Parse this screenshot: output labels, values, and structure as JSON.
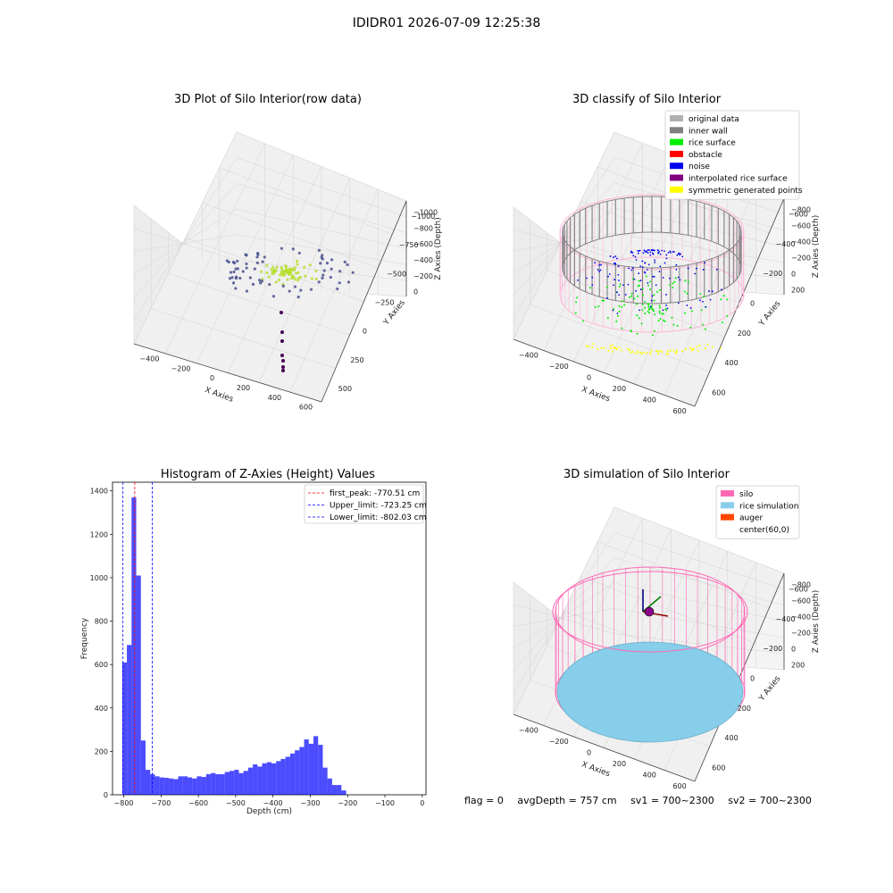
{
  "figure_title": "IDIDR01 2026-07-09 12:25:38",
  "panels": {
    "raw": {
      "title": "3D Plot of Silo Interior(row data)",
      "xlabel": "X Axies",
      "ylabel": "Y Axies",
      "zlabel": "Z Axies (Depth)",
      "xticks": [
        "−400",
        "−200",
        "0",
        "200",
        "400",
        "600"
      ],
      "yticks": [
        "500",
        "250",
        "0",
        "−250",
        "−500",
        "−750",
        "−1000"
      ],
      "zticks": [
        "0",
        "−200",
        "−400",
        "−600",
        "−800",
        "−1000"
      ]
    },
    "classify": {
      "title": "3D classify of Silo Interior",
      "xlabel": "X Axies",
      "ylabel": "Y Axies",
      "zlabel": "Z Axies (Depth)",
      "xticks": [
        "−400",
        "−200",
        "0",
        "200",
        "400",
        "600"
      ],
      "yticks": [
        "600",
        "400",
        "200",
        "0",
        "−200",
        "−400",
        "−600"
      ],
      "zticks": [
        "200",
        "0",
        "−200",
        "−400",
        "−600",
        "−800"
      ],
      "legend": [
        {
          "label": "original data",
          "color": "#b0b0b0"
        },
        {
          "label": "inner wall",
          "color": "#808080"
        },
        {
          "label": "rice surface",
          "color": "#00ee00"
        },
        {
          "label": "obstacle",
          "color": "#ff0000"
        },
        {
          "label": "noise",
          "color": "#0000ee"
        },
        {
          "label": "interpolated rice surface",
          "color": "#800080"
        },
        {
          "label": "symmetric generated points",
          "color": "#ffff00"
        }
      ]
    },
    "simulation": {
      "title": "3D simulation of Silo Interior",
      "xlabel": "X Axies",
      "ylabel": "Y Axies",
      "zlabel": "Z Axies (Depth)",
      "xticks": [
        "−400",
        "−200",
        "0",
        "200",
        "400",
        "600"
      ],
      "yticks": [
        "600",
        "400",
        "200",
        "0",
        "−200",
        "−400",
        "−600"
      ],
      "zticks": [
        "200",
        "0",
        "−200",
        "−400",
        "−600",
        "−800"
      ],
      "legend": [
        {
          "label": "silo",
          "color": "#ff69b4"
        },
        {
          "label": "rice simulation",
          "color": "#87ceeb"
        },
        {
          "label": "auger",
          "color": "#ff4500"
        },
        {
          "label": "center(60,0)",
          "color": ""
        }
      ]
    }
  },
  "chart_data": {
    "type": "bar",
    "title": "Histogram of Z-Axies (Height) Values",
    "xlabel": "Depth (cm)",
    "ylabel": "Frequency",
    "xlim": [
      -830,
      10
    ],
    "ylim": [
      0,
      1440
    ],
    "xticks": [
      -800,
      -700,
      -600,
      -500,
      -400,
      -300,
      -200,
      -100,
      0
    ],
    "yticks": [
      0,
      200,
      400,
      600,
      800,
      1000,
      1200,
      1400
    ],
    "bin_start": -804,
    "bin_width": 12.5,
    "values": [
      610,
      690,
      1370,
      1010,
      250,
      115,
      95,
      85,
      80,
      78,
      75,
      72,
      85,
      85,
      80,
      75,
      85,
      82,
      95,
      100,
      95,
      95,
      105,
      110,
      115,
      100,
      110,
      125,
      140,
      130,
      145,
      150,
      145,
      155,
      165,
      175,
      190,
      205,
      220,
      255,
      235,
      270,
      230,
      125,
      75,
      45,
      45,
      20
    ],
    "color": "#0000ff",
    "vlines": [
      {
        "x": -770.51,
        "label": "first_peak: -770.51 cm",
        "color": "#ff0000"
      },
      {
        "x": -723.25,
        "label": "Upper_limit: -723.25 cm",
        "color": "#0000ff"
      },
      {
        "x": -802.03,
        "label": "Lower_limit: -802.03 cm",
        "color": "#0000ff"
      }
    ],
    "legend_position": "top-right",
    "grid": false
  },
  "status": {
    "flag": "flag = 0",
    "avg_depth": "avgDepth = 757 cm",
    "sv1": "sv1 = 700~2300",
    "sv2": "sv2 = 700~2300"
  }
}
